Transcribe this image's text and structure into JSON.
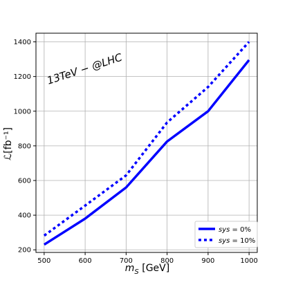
{
  "chart_data": {
    "type": "line",
    "xlabel": "m_S [GeV]",
    "xlabel_parts": {
      "var": "m",
      "sub": "S",
      "unit": " [GeV]"
    },
    "ylabel": "ℒ[fb⁻¹]",
    "xlim": [
      480,
      1020
    ],
    "ylim": [
      185,
      1450
    ],
    "xticks": [
      500,
      600,
      700,
      800,
      900,
      1000
    ],
    "yticks": [
      200,
      400,
      600,
      800,
      1000,
      1200,
      1400
    ],
    "grid": true,
    "legend_position": "lower right",
    "annotation": "13TeV − @LHC",
    "x": [
      500,
      600,
      700,
      800,
      900,
      1000
    ],
    "series": [
      {
        "name": "sys = 0%",
        "legend_var": "sys",
        "legend_eq": " = 0%",
        "style": "solid",
        "color": "#0000ff",
        "values": [
          230,
          380,
          560,
          825,
          1000,
          1295
        ]
      },
      {
        "name": "sys = 10%",
        "legend_var": "sys",
        "legend_eq": " = 10%",
        "style": "dotted",
        "color": "#0000ff",
        "values": [
          282,
          455,
          630,
          935,
          1140,
          1400
        ]
      }
    ]
  }
}
